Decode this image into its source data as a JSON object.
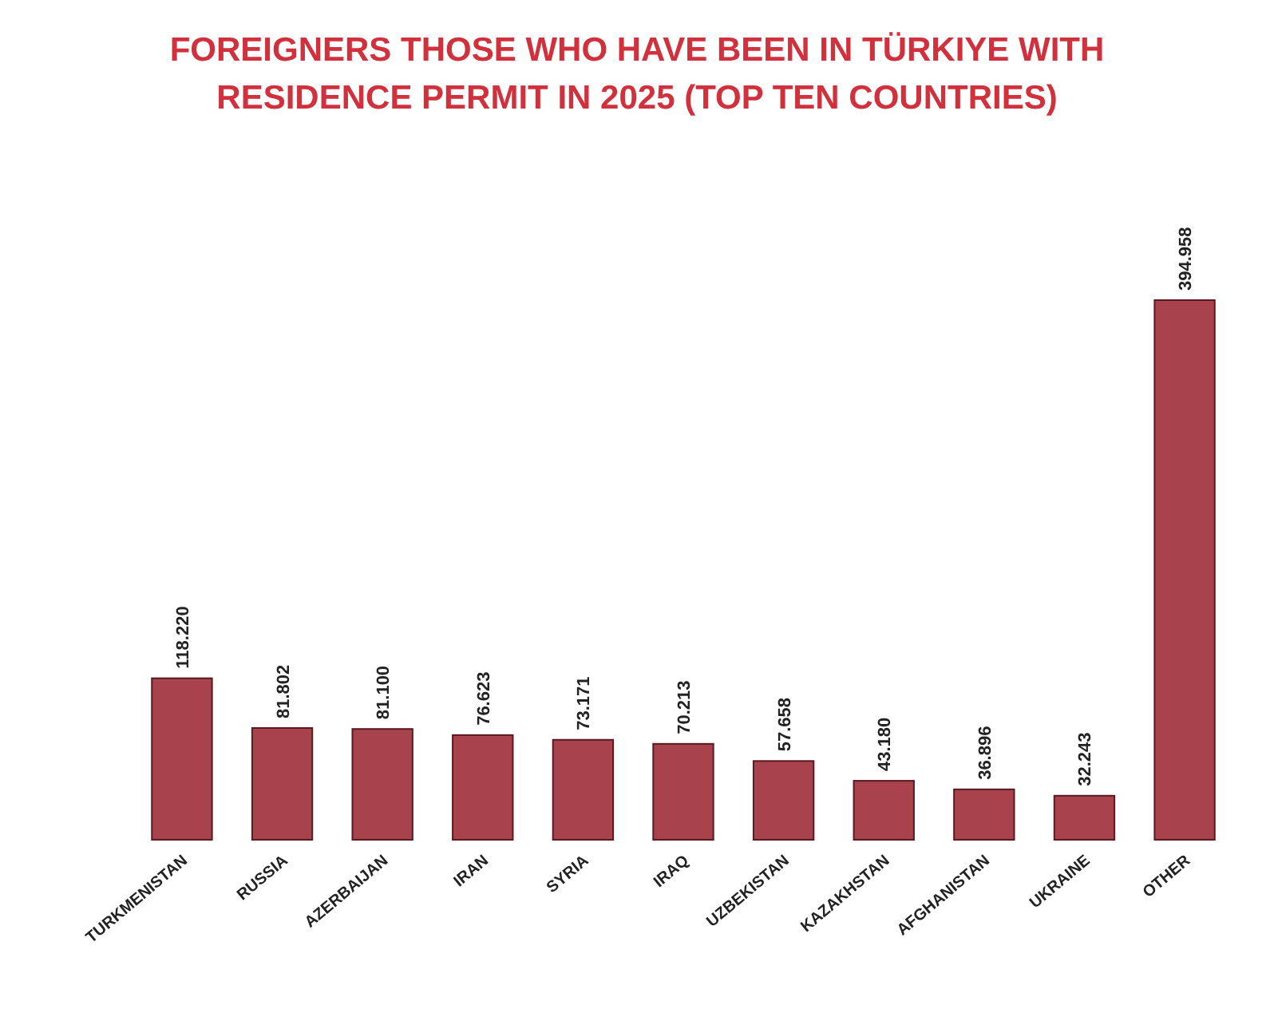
{
  "chart_data": {
    "type": "bar",
    "title": "FOREIGNERS THOSE WHO HAVE BEEN IN TÜRKIYE WITH RESIDENCE PERMIT IN 2025 (TOP TEN COUNTRIES)",
    "categories": [
      "TURKMENISTAN",
      "RUSSIA",
      "AZERBAIJAN",
      "IRAN",
      "SYRIA",
      "IRAQ",
      "UZBEKISTAN",
      "KAZAKHSTAN",
      "AFGHANISTAN",
      "UKRAINE",
      "OTHER"
    ],
    "values": [
      118220,
      81802,
      81100,
      76623,
      73171,
      70213,
      57658,
      43180,
      36896,
      32243,
      394958
    ],
    "value_labels": [
      "118.220",
      "81.802",
      "81.100",
      "76.623",
      "73.171",
      "70.213",
      "57.658",
      "43.180",
      "36.896",
      "32.243",
      "394.958"
    ],
    "color": "#a8424d"
  }
}
